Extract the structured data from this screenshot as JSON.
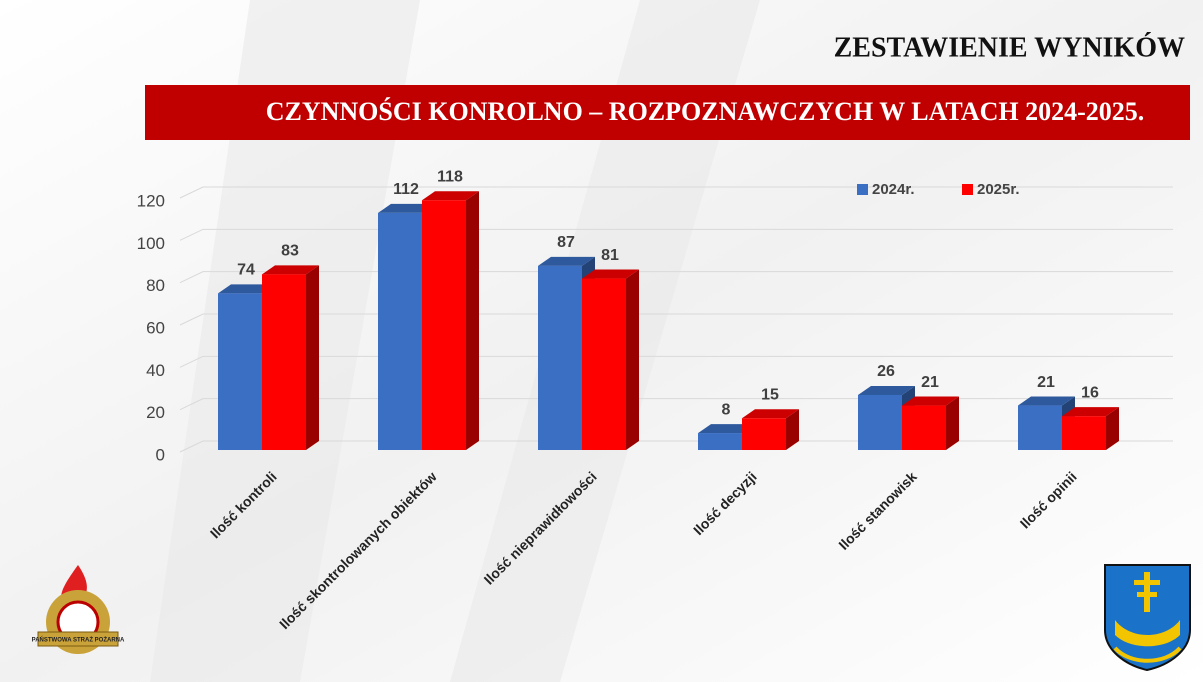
{
  "heading": "ZESTAWIENIE WYNIKÓW",
  "logo_text": "PAŃSTWOWA STRAŻ POŻARNA",
  "chart_data": {
    "type": "bar3d",
    "title": "CZYNNOŚCI KONROLNO – ROZPOZNAWCZYCH W LATACH 2024-2025.",
    "categories": [
      "Ilość kontroli",
      "Ilość skontrolowanych obiektów",
      "Ilość nieprawidłowości",
      "Ilość decyzji",
      "Ilość stanowisk",
      "Ilość opinii"
    ],
    "series": [
      {
        "name": "2024r.",
        "color": "#3a6fc4",
        "values": [
          74,
          112,
          87,
          8,
          26,
          21
        ]
      },
      {
        "name": "2025r.",
        "color": "#ff0000",
        "values": [
          83,
          118,
          81,
          15,
          21,
          16
        ]
      }
    ],
    "ylim": [
      0,
      120
    ],
    "yticks": [
      0,
      20,
      40,
      60,
      80,
      100,
      120
    ],
    "grid": true,
    "legend": "top-right"
  }
}
